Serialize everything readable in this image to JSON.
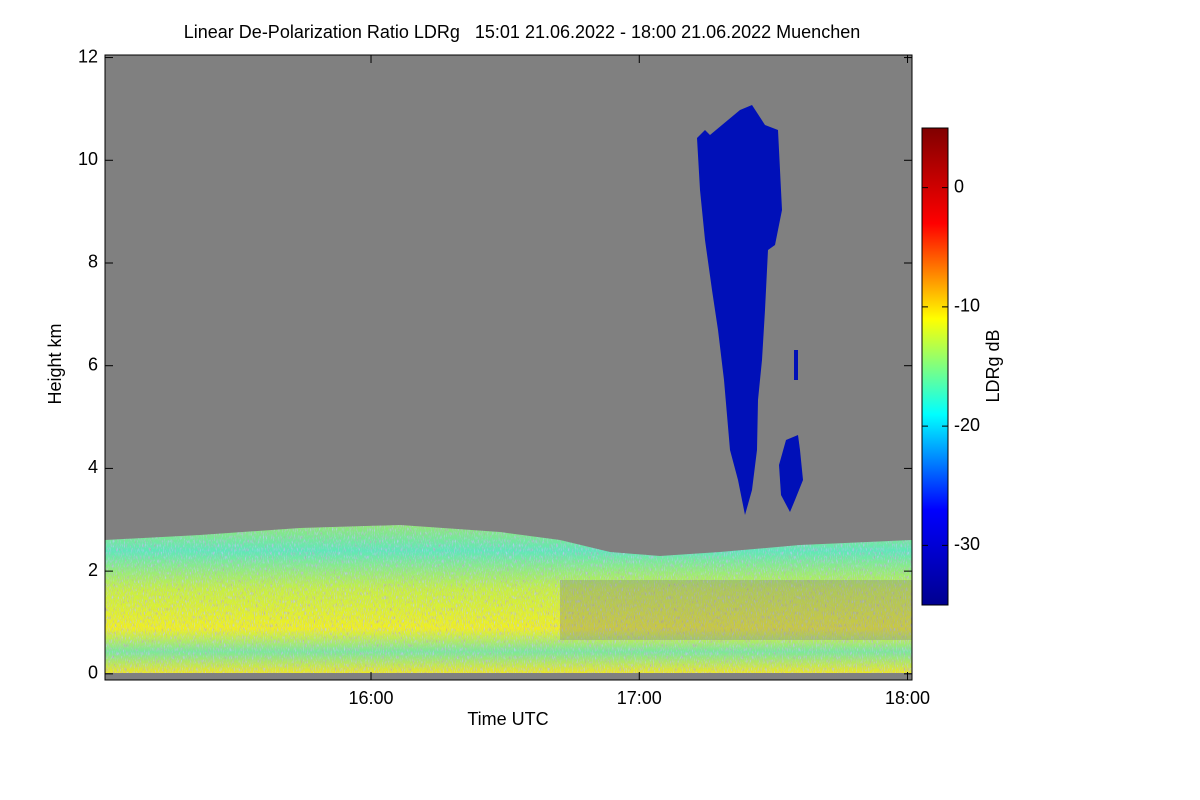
{
  "chart_data": {
    "type": "heatmap",
    "title": "Linear De-Polarization Ratio LDRg   15:01 21.06.2022 - 18:00 21.06.2022 Muenchen",
    "x_label": "Time UTC",
    "y_label": "Height km",
    "xlim": [
      900.5,
      1081
    ],
    "xticks": [
      {
        "value": 960,
        "label": "16:00"
      },
      {
        "value": 1020,
        "label": "17:00"
      },
      {
        "value": 1080,
        "label": "18:00"
      }
    ],
    "ylim": [
      -0.12,
      12.05
    ],
    "yticks": [
      0,
      2,
      4,
      6,
      8,
      10,
      12
    ],
    "colorbar": {
      "label": "LDRg dB",
      "lim": [
        -35,
        5
      ],
      "ticks": [
        0,
        -10,
        -20,
        -30
      ],
      "colormap": "jet"
    }
  }
}
